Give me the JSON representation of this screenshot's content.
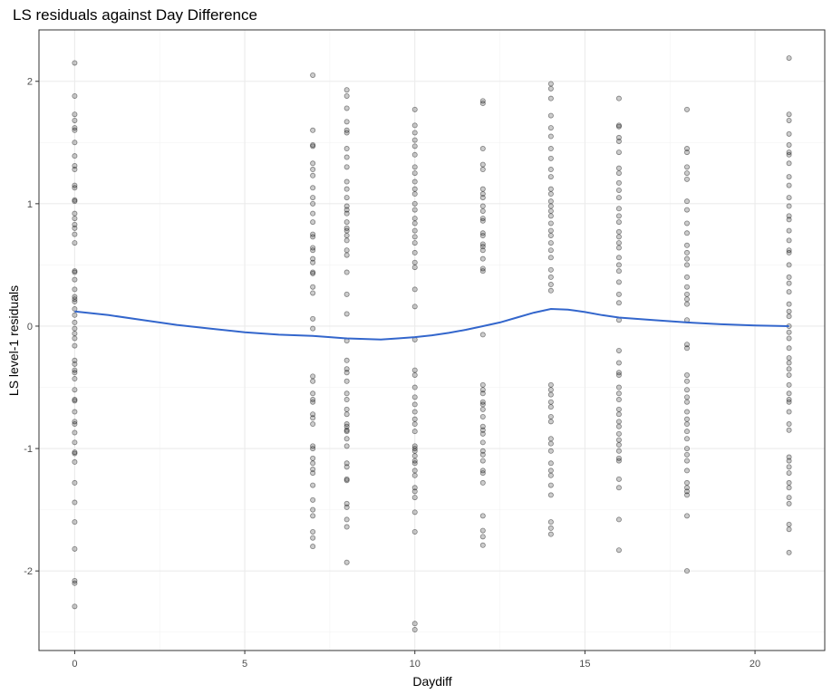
{
  "chart_data": {
    "type": "scatter",
    "title": "LS residuals against Day Difference",
    "xlabel": "Daydiff",
    "ylabel": "LS level-1 residuals",
    "xlim": [
      -1.05,
      22.05
    ],
    "ylim": [
      -2.65,
      2.42
    ],
    "x_ticks": [
      0,
      5,
      10,
      15,
      20
    ],
    "y_ticks": [
      -2,
      -1,
      0,
      1,
      2
    ],
    "grid": true,
    "legend": "none",
    "colors": {
      "points": "#000000",
      "smooth_line": "#3366cc"
    },
    "series": [
      {
        "kind": "points",
        "points_by_x": [
          {
            "x": 0,
            "y": [
              2.15,
              1.88,
              1.73,
              1.68,
              1.62,
              1.6,
              1.5,
              1.39,
              1.31,
              1.28,
              1.15,
              1.13,
              1.03,
              1.02,
              0.92,
              0.88,
              0.83,
              0.8,
              0.75,
              0.68,
              0.45,
              0.44,
              0.38,
              0.3,
              0.24,
              0.22,
              0.2,
              0.14,
              0.09,
              0.03,
              -0.02,
              -0.06,
              -0.1,
              -0.16,
              -0.28,
              -0.31,
              -0.36,
              -0.38,
              -0.43,
              -0.52,
              -0.6,
              -0.61,
              -0.7,
              -0.78,
              -0.8,
              -0.87,
              -0.95,
              -1.03,
              -1.04,
              -1.11,
              -1.28,
              -1.44,
              -1.6,
              -1.82,
              -2.08,
              -2.1,
              -2.29
            ]
          },
          {
            "x": 7,
            "y": [
              2.05,
              1.6,
              1.48,
              1.47,
              1.33,
              1.28,
              1.23,
              1.13,
              1.05,
              1.0,
              0.92,
              0.85,
              0.75,
              0.73,
              0.64,
              0.62,
              0.55,
              0.52,
              0.44,
              0.43,
              0.32,
              0.27,
              0.06,
              -0.02,
              -0.41,
              -0.45,
              -0.55,
              -0.6,
              -0.62,
              -0.72,
              -0.75,
              -0.8,
              -0.98,
              -1.0,
              -1.08,
              -1.12,
              -1.17,
              -1.2,
              -1.3,
              -1.42,
              -1.5,
              -1.55,
              -1.68,
              -1.73,
              -1.8
            ]
          },
          {
            "x": 8,
            "y": [
              1.93,
              1.88,
              1.78,
              1.67,
              1.6,
              1.58,
              1.45,
              1.38,
              1.3,
              1.18,
              1.12,
              1.05,
              0.98,
              0.95,
              0.92,
              0.85,
              0.8,
              0.78,
              0.74,
              0.7,
              0.62,
              0.58,
              0.44,
              0.26,
              0.1,
              -0.12,
              -0.28,
              -0.35,
              -0.38,
              -0.45,
              -0.55,
              -0.6,
              -0.68,
              -0.72,
              -0.8,
              -0.82,
              -0.85,
              -0.86,
              -0.92,
              -0.98,
              -1.12,
              -1.15,
              -1.25,
              -1.26,
              -1.45,
              -1.48,
              -1.58,
              -1.64,
              -1.93
            ]
          },
          {
            "x": 10,
            "y": [
              1.77,
              1.64,
              1.58,
              1.52,
              1.47,
              1.4,
              1.3,
              1.25,
              1.18,
              1.12,
              1.08,
              1.0,
              0.95,
              0.88,
              0.84,
              0.78,
              0.73,
              0.68,
              0.6,
              0.52,
              0.48,
              0.3,
              0.16,
              -0.11,
              -0.36,
              -0.4,
              -0.5,
              -0.58,
              -0.64,
              -0.7,
              -0.76,
              -0.8,
              -0.86,
              -0.98,
              -1.0,
              -1.02,
              -1.06,
              -1.1,
              -1.12,
              -1.18,
              -1.22,
              -1.32,
              -1.35,
              -1.4,
              -1.52,
              -1.68,
              -2.43,
              -2.48
            ]
          },
          {
            "x": 12,
            "y": [
              1.84,
              1.82,
              1.45,
              1.32,
              1.28,
              1.12,
              1.08,
              1.05,
              0.98,
              0.94,
              0.88,
              0.86,
              0.76,
              0.74,
              0.67,
              0.65,
              0.62,
              0.55,
              0.47,
              0.45,
              -0.07,
              -0.48,
              -0.52,
              -0.55,
              -0.62,
              -0.64,
              -0.68,
              -0.74,
              -0.82,
              -0.85,
              -0.88,
              -0.95,
              -1.02,
              -1.05,
              -1.1,
              -1.18,
              -1.2,
              -1.28,
              -1.55,
              -1.67,
              -1.72,
              -1.79
            ]
          },
          {
            "x": 14,
            "y": [
              1.98,
              1.94,
              1.86,
              1.72,
              1.62,
              1.55,
              1.45,
              1.37,
              1.28,
              1.22,
              1.12,
              1.08,
              1.02,
              0.98,
              0.94,
              0.9,
              0.84,
              0.78,
              0.74,
              0.68,
              0.62,
              0.56,
              0.46,
              0.4,
              0.34,
              0.29,
              -0.48,
              -0.52,
              -0.56,
              -0.62,
              -0.66,
              -0.74,
              -0.78,
              -0.92,
              -0.96,
              -1.02,
              -1.12,
              -1.18,
              -1.22,
              -1.3,
              -1.38,
              -1.6,
              -1.65,
              -1.7
            ]
          },
          {
            "x": 16,
            "y": [
              1.86,
              1.64,
              1.63,
              1.54,
              1.51,
              1.42,
              1.29,
              1.25,
              1.17,
              1.11,
              1.05,
              0.96,
              0.9,
              0.85,
              0.77,
              0.73,
              0.68,
              0.64,
              0.56,
              0.5,
              0.45,
              0.36,
              0.26,
              0.19,
              0.05,
              -0.2,
              -0.3,
              -0.38,
              -0.4,
              -0.5,
              -0.55,
              -0.6,
              -0.68,
              -0.72,
              -0.78,
              -0.82,
              -0.88,
              -0.93,
              -0.97,
              -1.02,
              -1.08,
              -1.1,
              -1.25,
              -1.32,
              -1.58,
              -1.83
            ]
          },
          {
            "x": 18,
            "y": [
              1.77,
              1.45,
              1.42,
              1.3,
              1.25,
              1.2,
              1.02,
              0.95,
              0.84,
              0.76,
              0.66,
              0.6,
              0.55,
              0.5,
              0.4,
              0.32,
              0.26,
              0.22,
              0.18,
              0.05,
              -0.15,
              -0.18,
              -0.4,
              -0.45,
              -0.52,
              -0.58,
              -0.62,
              -0.7,
              -0.76,
              -0.8,
              -0.86,
              -0.92,
              -1.0,
              -1.05,
              -1.1,
              -1.18,
              -1.28,
              -1.32,
              -1.35,
              -1.38,
              -1.55,
              -2.0
            ]
          },
          {
            "x": 21,
            "y": [
              2.19,
              1.73,
              1.68,
              1.57,
              1.48,
              1.42,
              1.4,
              1.33,
              1.22,
              1.15,
              1.05,
              0.98,
              0.9,
              0.87,
              0.78,
              0.7,
              0.62,
              0.6,
              0.5,
              0.4,
              0.35,
              0.28,
              0.18,
              0.12,
              0.08,
              0.0,
              -0.05,
              -0.1,
              -0.18,
              -0.26,
              -0.3,
              -0.35,
              -0.4,
              -0.48,
              -0.55,
              -0.6,
              -0.62,
              -0.7,
              -0.8,
              -0.85,
              -1.07,
              -1.1,
              -1.15,
              -1.2,
              -1.28,
              -1.32,
              -1.4,
              -1.45,
              -1.62,
              -1.66,
              -1.85
            ]
          }
        ]
      },
      {
        "kind": "smooth",
        "x": [
          0,
          1,
          2,
          3,
          4,
          5,
          6,
          7,
          7.5,
          8,
          8.5,
          9,
          9.5,
          10,
          10.5,
          11,
          11.5,
          12,
          12.5,
          13,
          13.5,
          14,
          14.5,
          15,
          15.5,
          16,
          17,
          18,
          19,
          20,
          21
        ],
        "y": [
          0.12,
          0.09,
          0.05,
          0.01,
          -0.02,
          -0.05,
          -0.07,
          -0.08,
          -0.09,
          -0.1,
          -0.105,
          -0.11,
          -0.1,
          -0.09,
          -0.075,
          -0.055,
          -0.03,
          0.0,
          0.03,
          0.07,
          0.11,
          0.14,
          0.135,
          0.115,
          0.09,
          0.07,
          0.05,
          0.03,
          0.015,
          0.005,
          0.0
        ]
      }
    ]
  }
}
